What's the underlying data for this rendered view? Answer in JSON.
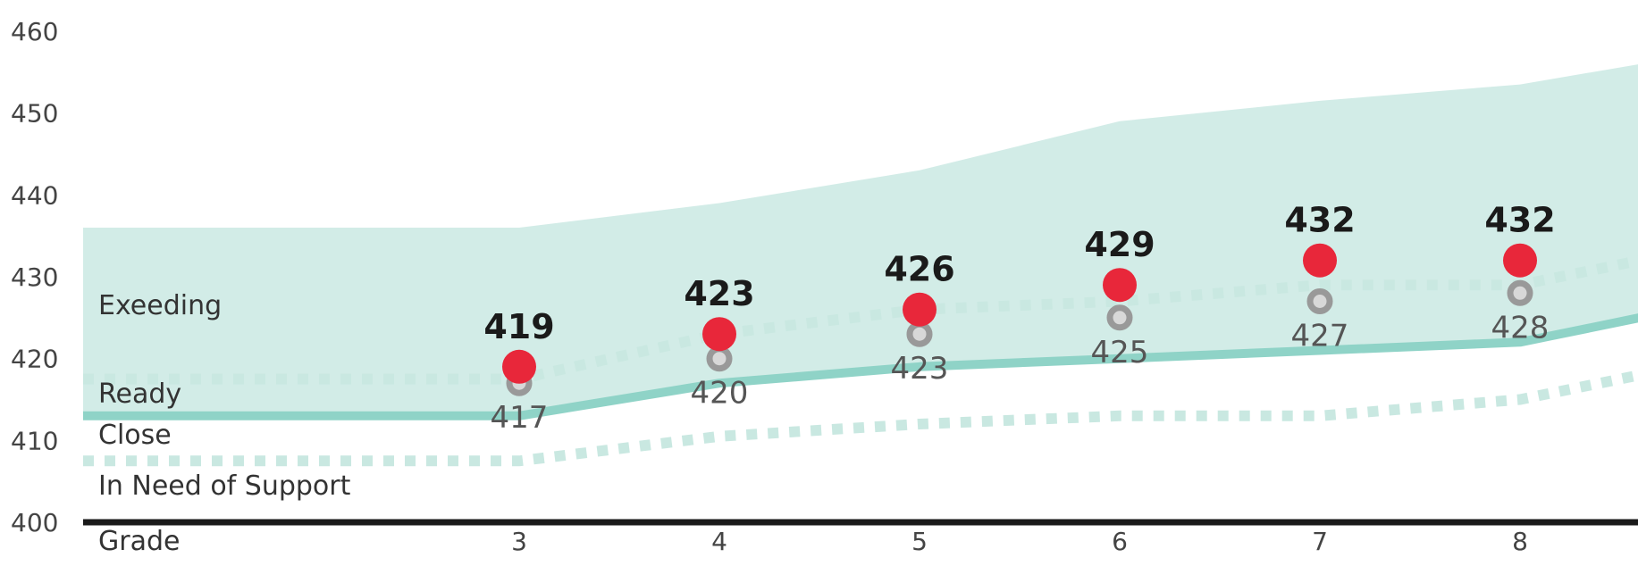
{
  "chart_data": {
    "type": "line",
    "xlabel": "Grade",
    "categories": [
      "3",
      "4",
      "5",
      "6",
      "7",
      "8"
    ],
    "ylim": [
      400,
      460
    ],
    "yticks": [
      400,
      410,
      420,
      430,
      440,
      450,
      460
    ],
    "grid": false,
    "series": [
      {
        "values": [
          419,
          423,
          426,
          429,
          432,
          432
        ],
        "color": "#e8273a"
      },
      {
        "values": [
          417,
          420,
          423,
          425,
          427,
          428
        ],
        "color": "#999999"
      }
    ],
    "bands": [
      {
        "label": "Exeeding"
      },
      {
        "label": "Ready"
      },
      {
        "label": "Close"
      },
      {
        "label": "In Need of Support"
      }
    ],
    "thresholds": {
      "x": [
        0,
        3,
        4,
        5,
        6,
        7,
        8,
        8.6
      ],
      "exceeding_top": [
        436,
        436,
        439,
        443,
        449,
        451.5,
        453.5,
        456
      ],
      "exceeding_cut": [
        417.5,
        417.5,
        423,
        426,
        427,
        429,
        429,
        432
      ],
      "ready_cut": [
        413,
        413,
        417,
        419,
        420,
        421,
        422,
        425
      ],
      "close_cut": [
        407.5,
        407.5,
        410.5,
        412,
        413,
        413,
        415,
        418
      ]
    },
    "colors": {
      "band_fill": "#d2ece7",
      "ready_line": "#8fd3c7",
      "dotted_line": "#c9e8e1",
      "axis": "#1a1a1a"
    }
  }
}
